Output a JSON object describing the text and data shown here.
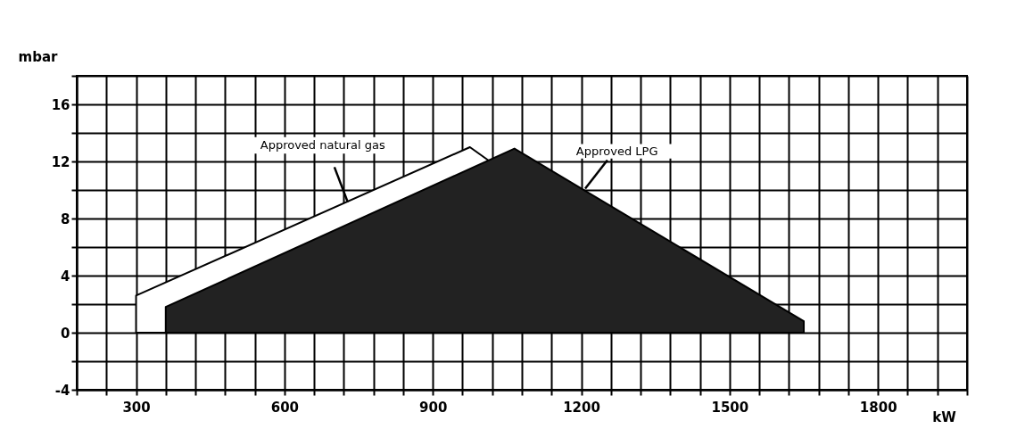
{
  "chart_data": {
    "type": "area",
    "xlabel": "kW",
    "ylabel": "mbar",
    "xlim": [
      180,
      1980
    ],
    "ylim": [
      -4,
      18
    ],
    "xticks": [
      {
        "value": 180,
        "label": null
      },
      {
        "value": 240,
        "label": null
      },
      300,
      {
        "value": 360,
        "label": null
      },
      {
        "value": 420,
        "label": null
      },
      {
        "value": 480,
        "label": null
      },
      {
        "value": 540,
        "label": null
      },
      600,
      {
        "value": 660,
        "label": null
      },
      {
        "value": 720,
        "label": null
      },
      {
        "value": 780,
        "label": null
      },
      {
        "value": 840,
        "label": null
      },
      900,
      {
        "value": 960,
        "label": null
      },
      {
        "value": 1020,
        "label": null
      },
      {
        "value": 1080,
        "label": null
      },
      {
        "value": 1140,
        "label": null
      },
      1200,
      {
        "value": 1260,
        "label": null
      },
      {
        "value": 1320,
        "label": null
      },
      {
        "value": 1380,
        "label": null
      },
      {
        "value": 1440,
        "label": null
      },
      1500,
      {
        "value": 1560,
        "label": null
      },
      {
        "value": 1620,
        "label": null
      },
      {
        "value": 1680,
        "label": null
      },
      {
        "value": 1740,
        "label": null
      },
      1800,
      {
        "value": 1860,
        "label": null
      },
      {
        "value": 1920,
        "label": null
      },
      {
        "value": 1980,
        "label": null
      }
    ],
    "yticks": [
      -4,
      {
        "value": -2,
        "label": null
      },
      0,
      {
        "value": 2,
        "label": null
      },
      4,
      {
        "value": 6,
        "label": null
      },
      8,
      {
        "value": 10,
        "label": null
      },
      12,
      {
        "value": 14,
        "label": null
      },
      16,
      {
        "value": 18,
        "label": null
      }
    ],
    "grid": true,
    "series": [
      {
        "name": "Approved natural gas",
        "color": "#ffffff",
        "x": [
          300,
          300,
          975,
          1500
        ],
        "values": [
          0,
          2.6,
          13,
          0
        ]
      },
      {
        "name": "Approved LPG",
        "color": "#222222",
        "x": [
          360,
          360,
          1065,
          1650,
          1650
        ],
        "values": [
          0,
          1.8,
          12.9,
          0.8,
          0
        ]
      }
    ]
  }
}
